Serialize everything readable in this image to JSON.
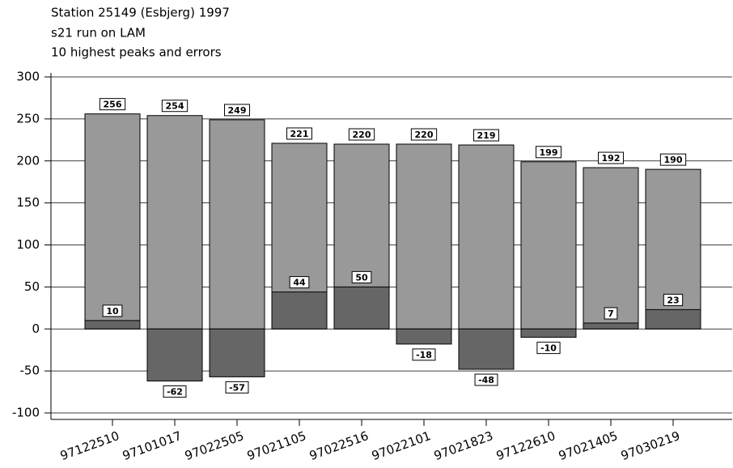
{
  "chart_data": {
    "type": "bar",
    "title_lines": [
      "Station 25149 (Esbjerg) 1997",
      "s21 run on LAM",
      "10 highest peaks and errors"
    ],
    "categories": [
      "97122510",
      "97101017",
      "97022505",
      "97021105",
      "97022516",
      "97022101",
      "97021823",
      "97122610",
      "97021405",
      "97030219"
    ],
    "series": [
      {
        "color": "#999999",
        "values": [
          256,
          254,
          249,
          221,
          220,
          220,
          219,
          199,
          192,
          190
        ]
      },
      {
        "color": "#666666",
        "values": [
          10,
          -62,
          -57,
          44,
          50,
          -18,
          -48,
          -10,
          7,
          23
        ]
      }
    ],
    "ylim": [
      -100,
      300
    ],
    "yticks": [
      -100,
      -50,
      0,
      50,
      100,
      150,
      200,
      250,
      300
    ],
    "grid": true
  }
}
